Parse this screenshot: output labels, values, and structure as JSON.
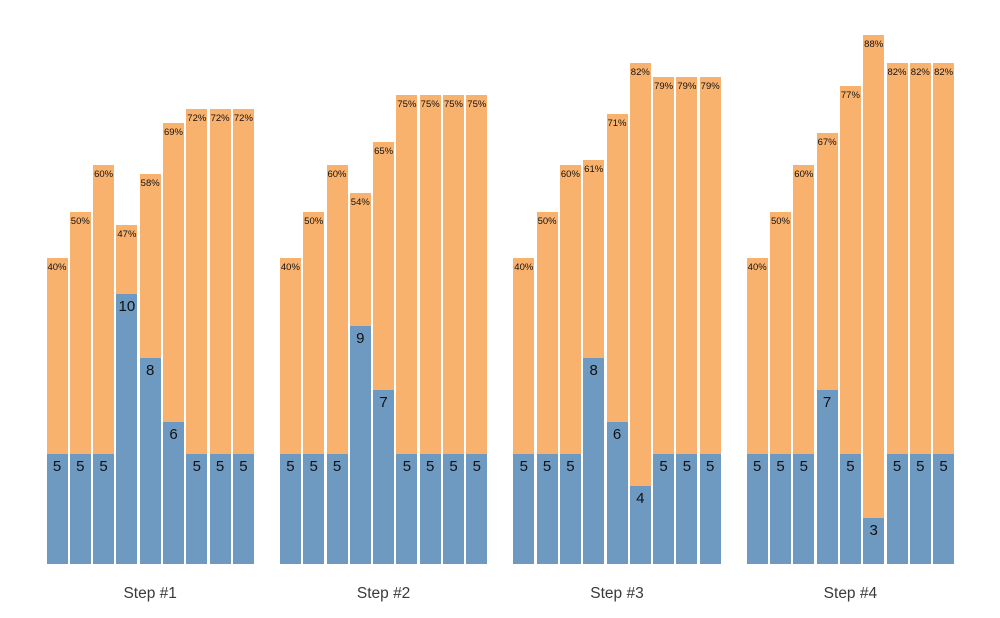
{
  "chart_data": {
    "type": "bar",
    "subtype": "grouped-stacked",
    "title": "",
    "xlabel": "",
    "ylabel": "",
    "legend": "none",
    "grid": "off",
    "axes_visible": false,
    "categories": [
      "Step #1",
      "Step #2",
      "Step #3",
      "Step #4"
    ],
    "series_colors": {
      "blue_base": "#6E9AC2",
      "orange_top": "#F9B26D"
    },
    "label_colors": {
      "bar_labels": "#111111",
      "group_labels": "#3a3a3a"
    },
    "bar_label_meaning": "blue segment shows count label, orange segment shows percent label at its top",
    "groups": [
      {
        "label": "Step #1",
        "bars": [
          {
            "blue_value": 5,
            "percent": 40,
            "percent_label": "40%"
          },
          {
            "blue_value": 5,
            "percent": 50,
            "percent_label": "50%"
          },
          {
            "blue_value": 5,
            "percent": 60,
            "percent_label": "60%"
          },
          {
            "blue_value": 10,
            "percent": 47,
            "percent_label": "47%"
          },
          {
            "blue_value": 8,
            "percent": 58,
            "percent_label": "58%"
          },
          {
            "blue_value": 6,
            "percent": 69,
            "percent_label": "69%"
          },
          {
            "blue_value": 5,
            "percent": 72,
            "percent_label": "72%"
          },
          {
            "blue_value": 5,
            "percent": 72,
            "percent_label": "72%"
          },
          {
            "blue_value": 5,
            "percent": 72,
            "percent_label": "72%"
          }
        ]
      },
      {
        "label": "Step #2",
        "bars": [
          {
            "blue_value": 5,
            "percent": 40,
            "percent_label": "40%"
          },
          {
            "blue_value": 5,
            "percent": 50,
            "percent_label": "50%"
          },
          {
            "blue_value": 5,
            "percent": 60,
            "percent_label": "60%"
          },
          {
            "blue_value": 9,
            "percent": 54,
            "percent_label": "54%"
          },
          {
            "blue_value": 7,
            "percent": 65,
            "percent_label": "65%"
          },
          {
            "blue_value": 5,
            "percent": 75,
            "percent_label": "75%"
          },
          {
            "blue_value": 5,
            "percent": 75,
            "percent_label": "75%"
          },
          {
            "blue_value": 5,
            "percent": 75,
            "percent_label": "75%"
          },
          {
            "blue_value": 5,
            "percent": 75,
            "percent_label": "75%"
          }
        ]
      },
      {
        "label": "Step #3",
        "bars": [
          {
            "blue_value": 5,
            "percent": 40,
            "percent_label": "40%"
          },
          {
            "blue_value": 5,
            "percent": 50,
            "percent_label": "50%"
          },
          {
            "blue_value": 5,
            "percent": 60,
            "percent_label": "60%"
          },
          {
            "blue_value": 8,
            "percent": 61,
            "percent_label": "61%"
          },
          {
            "blue_value": 6,
            "percent": 71,
            "percent_label": "71%"
          },
          {
            "blue_value": 4,
            "percent": 82,
            "percent_label": "82%"
          },
          {
            "blue_value": 5,
            "percent": 79,
            "percent_label": "79%"
          },
          {
            "blue_value": 5,
            "percent": 79,
            "percent_label": "79%"
          },
          {
            "blue_value": 5,
            "percent": 79,
            "percent_label": "79%"
          }
        ]
      },
      {
        "label": "Step #4",
        "bars": [
          {
            "blue_value": 5,
            "percent": 40,
            "percent_label": "40%"
          },
          {
            "blue_value": 5,
            "percent": 50,
            "percent_label": "50%"
          },
          {
            "blue_value": 5,
            "percent": 60,
            "percent_label": "60%"
          },
          {
            "blue_value": 7,
            "percent": 67,
            "percent_label": "67%"
          },
          {
            "blue_value": 5,
            "percent": 77,
            "percent_label": "77%"
          },
          {
            "blue_value": 3,
            "percent": 88,
            "percent_label": "88%"
          },
          {
            "blue_value": 5,
            "percent": 82,
            "percent_label": "82%"
          },
          {
            "blue_value": 5,
            "percent": 82,
            "percent_label": "82%"
          },
          {
            "blue_value": 5,
            "percent": 82,
            "percent_label": "82%"
          }
        ]
      }
    ]
  }
}
